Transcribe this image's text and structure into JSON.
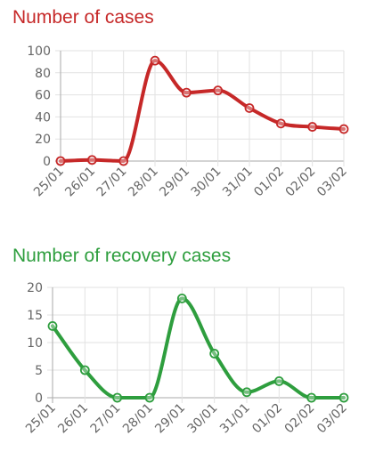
{
  "chart_data": [
    {
      "type": "line",
      "title": "Number of cases",
      "xlabel": "",
      "ylabel": "",
      "categories": [
        "25/01",
        "26/01",
        "27/01",
        "28/01",
        "29/01",
        "30/01",
        "31/01",
        "01/02",
        "02/02",
        "03/02"
      ],
      "series": [
        {
          "values": [
            0,
            1,
            0,
            91,
            62,
            64,
            48,
            34,
            31,
            29
          ],
          "color": "#c62828"
        }
      ],
      "ylim": [
        0,
        100
      ],
      "yticks": [
        0,
        20,
        40,
        60,
        80,
        100
      ],
      "grid": true,
      "legend": "none",
      "smooth": true
    },
    {
      "type": "line",
      "title": "Number of recovery cases",
      "xlabel": "",
      "ylabel": "",
      "categories": [
        "25/01",
        "26/01",
        "27/01",
        "28/01",
        "29/01",
        "30/01",
        "31/01",
        "01/02",
        "02/02",
        "03/02"
      ],
      "series": [
        {
          "values": [
            13,
            5,
            0,
            0,
            18,
            8,
            1,
            3,
            0,
            0
          ],
          "color": "#2e9e3e"
        }
      ],
      "ylim": [
        0,
        20
      ],
      "yticks": [
        0,
        5,
        10,
        15,
        20
      ],
      "grid": true,
      "legend": "none",
      "smooth": true
    }
  ]
}
